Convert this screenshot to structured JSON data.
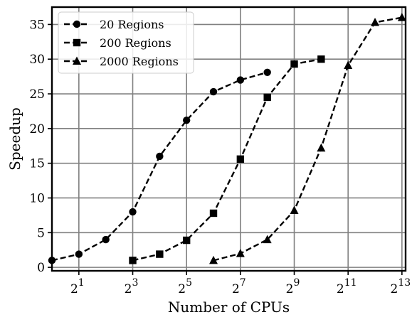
{
  "chart_data": {
    "type": "line",
    "title": "",
    "xlabel": "Number of CPUs",
    "ylabel": "Speedup",
    "x_scale": "log2",
    "x_tick_exponents": [
      1,
      3,
      5,
      7,
      9,
      11,
      13
    ],
    "x_tick_base": "2",
    "xlim": [
      1,
      9000
    ],
    "ylim": [
      -0.5,
      37.5
    ],
    "y_ticks": [
      0,
      5,
      10,
      15,
      20,
      25,
      30,
      35
    ],
    "grid": true,
    "legend_position": "top-left",
    "series": [
      {
        "name": "20 Regions",
        "marker": "circle",
        "x": [
          1,
          2,
          4,
          8,
          16,
          32,
          64,
          128,
          256
        ],
        "y": [
          1.0,
          1.9,
          4.0,
          8.0,
          16.0,
          21.2,
          25.3,
          27.0,
          28.1
        ]
      },
      {
        "name": "200 Regions",
        "marker": "square",
        "x": [
          8,
          16,
          32,
          64,
          128,
          256,
          512,
          1024
        ],
        "y": [
          1.0,
          1.9,
          3.9,
          7.8,
          15.6,
          24.5,
          29.3,
          30.0
        ]
      },
      {
        "name": "2000 Regions",
        "marker": "triangle",
        "x": [
          64,
          128,
          256,
          512,
          1024,
          2048,
          4096,
          8192
        ],
        "y": [
          1.0,
          2.0,
          4.0,
          8.2,
          17.2,
          29.1,
          35.3,
          36.0
        ]
      }
    ]
  }
}
